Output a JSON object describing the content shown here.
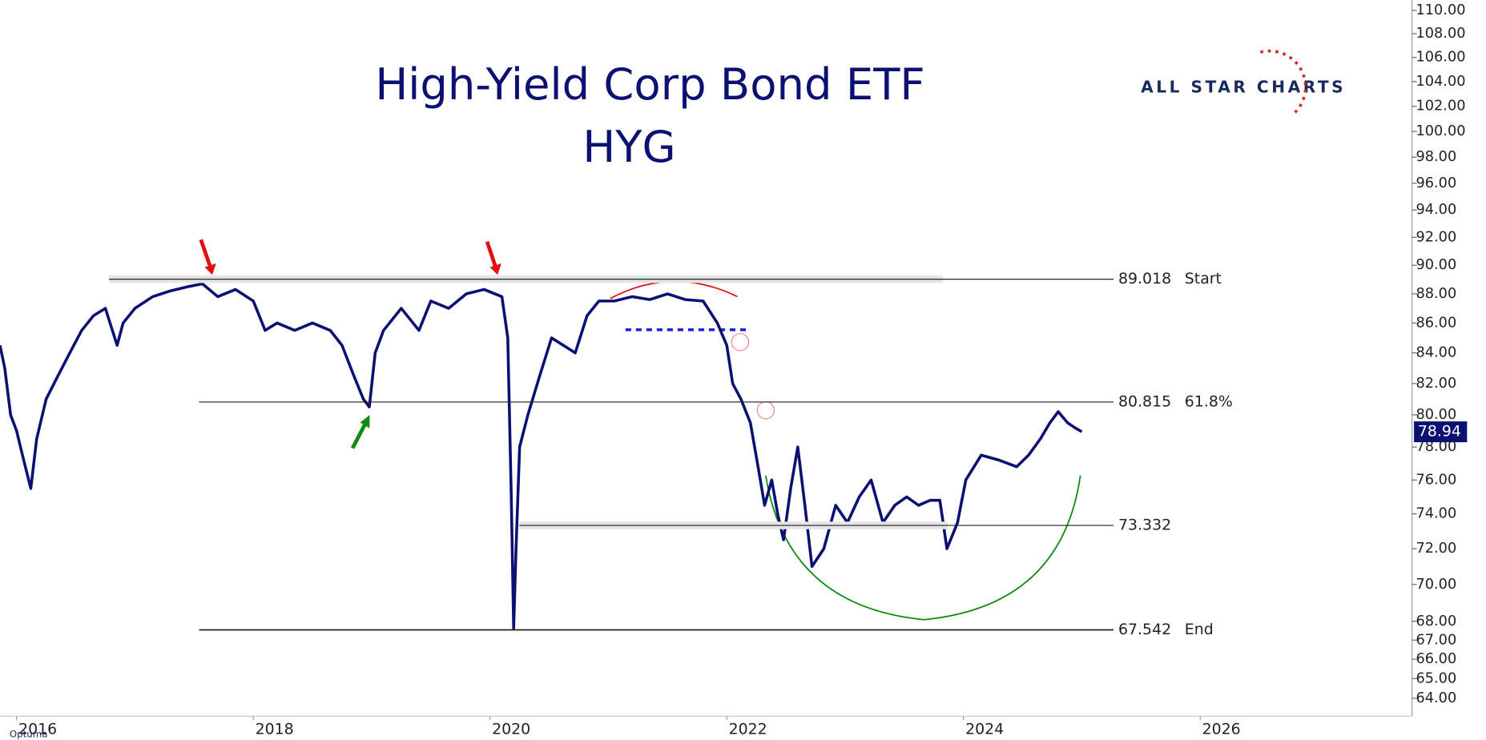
{
  "chart_data": {
    "type": "line",
    "title": "High-Yield Corp Bond ETF",
    "subtitle": "HYG",
    "brand": "ALL STAR CHARTS",
    "platform": "Optuma",
    "color": "#0a1172",
    "log_scale": true,
    "last_value": 78.94,
    "x": [
      2015.86,
      2015.9,
      2015.95,
      2016.0,
      2016.05,
      2016.12,
      2016.17,
      2016.25,
      2016.35,
      2016.45,
      2016.55,
      2016.65,
      2016.75,
      2016.85,
      2016.9,
      2017.0,
      2017.15,
      2017.3,
      2017.45,
      2017.57,
      2017.7,
      2017.85,
      2018.0,
      2018.1,
      2018.2,
      2018.35,
      2018.5,
      2018.65,
      2018.75,
      2018.85,
      2018.93,
      2018.98,
      2019.03,
      2019.1,
      2019.25,
      2019.4,
      2019.5,
      2019.65,
      2019.8,
      2019.95,
      2020.1,
      2020.15,
      2020.18,
      2020.2,
      2020.22,
      2020.25,
      2020.32,
      2020.42,
      2020.52,
      2020.62,
      2020.72,
      2020.82,
      2020.92,
      2021.05,
      2021.2,
      2021.35,
      2021.5,
      2021.65,
      2021.8,
      2021.92,
      2022.0,
      2022.05,
      2022.12,
      2022.2,
      2022.26,
      2022.32,
      2022.38,
      2022.43,
      2022.48,
      2022.54,
      2022.6,
      2022.66,
      2022.72,
      2022.82,
      2022.92,
      2023.02,
      2023.12,
      2023.22,
      2023.32,
      2023.42,
      2023.52,
      2023.62,
      2023.72,
      2023.8,
      2023.86,
      2023.95,
      2024.02,
      2024.15,
      2024.3,
      2024.45,
      2024.55,
      2024.65,
      2024.73,
      2024.8,
      2024.88,
      2024.94,
      2025.0
    ],
    "values": [
      84.5,
      83,
      80,
      79,
      77.5,
      75.5,
      78.5,
      81,
      82.5,
      84,
      85.5,
      86.5,
      87,
      84.5,
      86,
      87,
      87.8,
      88.2,
      88.5,
      88.7,
      87.8,
      88.3,
      87.5,
      85.5,
      86,
      85.5,
      86,
      85.5,
      84.5,
      82.5,
      81,
      80.5,
      84,
      85.5,
      87,
      85.5,
      87.5,
      87,
      88,
      88.3,
      87.8,
      85,
      75,
      67.6,
      72,
      78,
      80,
      82.5,
      85,
      84.5,
      84,
      86.5,
      87.5,
      87.5,
      87.8,
      87.6,
      88,
      87.6,
      87.5,
      86,
      84.5,
      82,
      81,
      79.5,
      77,
      74.5,
      76,
      74,
      72.5,
      75.5,
      78,
      74.5,
      71,
      72,
      74.5,
      73.5,
      75,
      76,
      73.5,
      74.5,
      75,
      74.5,
      74.8,
      74.8,
      72,
      73.5,
      76,
      77.5,
      77.2,
      76.8,
      77.5,
      78.5,
      79.5,
      80.2,
      79.5,
      79.2,
      78.94
    ],
    "xlim": [
      2015.86,
      2027.79
    ],
    "xticks": [
      2016,
      2018,
      2020,
      2022,
      2024,
      2026
    ],
    "ylim": [
      63.1,
      110.9
    ],
    "yticks": [
      {
        "value": 110,
        "label": "110.00"
      },
      {
        "value": 108,
        "label": "108.00"
      },
      {
        "value": 106,
        "label": "106.00"
      },
      {
        "value": 104,
        "label": "104.00"
      },
      {
        "value": 102,
        "label": "102.00"
      },
      {
        "value": 100,
        "label": "100.00"
      },
      {
        "value": 98,
        "label": "98.00"
      },
      {
        "value": 96,
        "label": "96.00"
      },
      {
        "value": 94,
        "label": "94.00"
      },
      {
        "value": 92,
        "label": "92.00"
      },
      {
        "value": 90,
        "label": "90.00"
      },
      {
        "value": 88,
        "label": "88.00"
      },
      {
        "value": 86,
        "label": "86.00"
      },
      {
        "value": 84,
        "label": "84.00"
      },
      {
        "value": 82,
        "label": "82.00"
      },
      {
        "value": 80,
        "label": "80.00"
      },
      {
        "value": 78,
        "label": "78.00"
      },
      {
        "value": 76,
        "label": "76.00"
      },
      {
        "value": 74,
        "label": "74.00"
      },
      {
        "value": 72,
        "label": "72.00"
      },
      {
        "value": 70,
        "label": "70.00"
      },
      {
        "value": 68,
        "label": "68.00"
      },
      {
        "value": 67,
        "label": "67.00"
      },
      {
        "value": 66,
        "label": "66.00"
      },
      {
        "value": 65,
        "label": "65.00"
      },
      {
        "value": 64,
        "label": "64.00"
      }
    ],
    "levels": [
      {
        "value": 89.018,
        "label": "Start"
      },
      {
        "value": 80.815,
        "label": "61.8%"
      },
      {
        "value": 73.332
      },
      {
        "value": 67.542,
        "label": "End"
      }
    ]
  }
}
